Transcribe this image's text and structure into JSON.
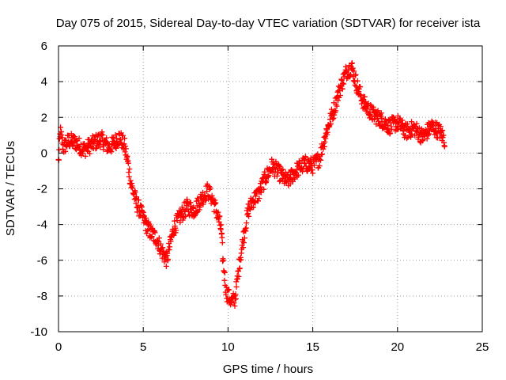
{
  "chart_data": {
    "type": "scatter",
    "title": "Day 075 of 2015, Sidereal Day-to-day VTEC variation (SDTVAR) for receiver ista",
    "xlabel": "GPS time / hours",
    "ylabel": "SDTVAR / TECUs",
    "xlim": [
      0,
      25
    ],
    "ylim": [
      -10,
      6
    ],
    "xticks": [
      0,
      5,
      10,
      15,
      20,
      25
    ],
    "yticks": [
      -10,
      -8,
      -6,
      -4,
      -2,
      0,
      2,
      4,
      6
    ],
    "grid": true,
    "marker": "+",
    "color": "#ff0000",
    "series": [
      {
        "name": "SDTVAR",
        "x": [
          0.0,
          0.1,
          0.3,
          0.6,
          1.0,
          1.5,
          2.0,
          2.5,
          3.0,
          3.3,
          3.6,
          3.9,
          4.1,
          4.3,
          4.6,
          4.9,
          5.1,
          5.4,
          5.8,
          6.1,
          6.4,
          6.6,
          6.8,
          7.2,
          7.6,
          8.0,
          8.4,
          8.8,
          9.1,
          9.4,
          9.6,
          9.7,
          9.9,
          10.2,
          10.4,
          10.5,
          10.7,
          11.0,
          11.2,
          11.5,
          11.8,
          12.2,
          12.6,
          13.0,
          13.5,
          14.0,
          14.5,
          15.0,
          15.4,
          15.8,
          16.2,
          16.6,
          17.0,
          17.3,
          17.6,
          18.0,
          18.5,
          19.0,
          19.5,
          20.0,
          20.5,
          21.0,
          21.5,
          22.0,
          22.5,
          22.8
        ],
        "y": [
          -0.5,
          1.2,
          0.3,
          0.7,
          0.6,
          0.2,
          0.5,
          0.8,
          0.3,
          0.6,
          0.9,
          0.4,
          -0.6,
          -1.8,
          -2.8,
          -3.4,
          -3.9,
          -4.4,
          -4.8,
          -5.5,
          -6.0,
          -5.0,
          -4.2,
          -3.5,
          -3.0,
          -3.2,
          -2.6,
          -2.1,
          -2.6,
          -3.5,
          -4.3,
          -6.0,
          -7.8,
          -8.3,
          -8.2,
          -7.5,
          -6.0,
          -4.2,
          -3.2,
          -2.6,
          -2.3,
          -1.4,
          -0.7,
          -1.1,
          -1.6,
          -1.0,
          -0.6,
          -0.7,
          -0.3,
          1.2,
          2.3,
          3.6,
          4.6,
          4.8,
          3.8,
          2.8,
          2.2,
          1.9,
          1.5,
          1.7,
          1.2,
          1.4,
          0.9,
          1.5,
          1.2,
          0.7
        ]
      }
    ]
  }
}
